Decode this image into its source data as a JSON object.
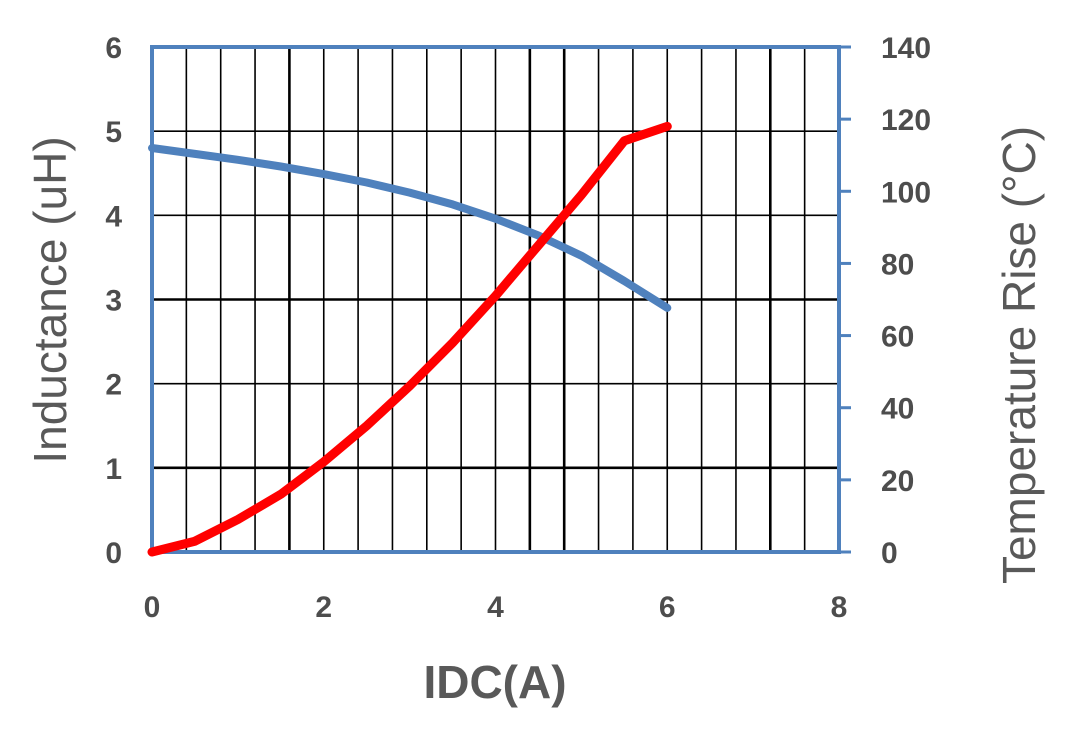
{
  "chart_data": {
    "type": "line",
    "xlabel": "IDC(A)",
    "ylabel": "Inductance (uH)",
    "y2label": "Temperature Rise (°C)",
    "xlim": [
      0,
      8
    ],
    "ylim": [
      0,
      6
    ],
    "y2lim": [
      0,
      140
    ],
    "xticks": [
      "0",
      "2",
      "4",
      "6",
      "8"
    ],
    "yticks": [
      "0",
      "1",
      "2",
      "3",
      "4",
      "5",
      "6"
    ],
    "y2ticks": [
      "0",
      "20",
      "40",
      "60",
      "80",
      "100",
      "120",
      "140"
    ],
    "grid": true,
    "series": [
      {
        "axis": "left",
        "color": "#4f81bd",
        "x": [
          0,
          0.5,
          1,
          1.5,
          2,
          2.5,
          3,
          3.5,
          4,
          4.5,
          5,
          5.5,
          6
        ],
        "y": [
          4.8,
          4.73,
          4.66,
          4.58,
          4.49,
          4.39,
          4.27,
          4.13,
          3.96,
          3.76,
          3.52,
          3.22,
          2.9
        ]
      },
      {
        "axis": "right",
        "color": "#ff0000",
        "x": [
          0,
          0.5,
          1,
          1.5,
          2,
          2.5,
          3,
          3.5,
          4,
          4.5,
          5,
          5.5,
          6
        ],
        "y": [
          0,
          3,
          9,
          16,
          25,
          35,
          46,
          58,
          71,
          85,
          99,
          114,
          118
        ]
      }
    ]
  }
}
